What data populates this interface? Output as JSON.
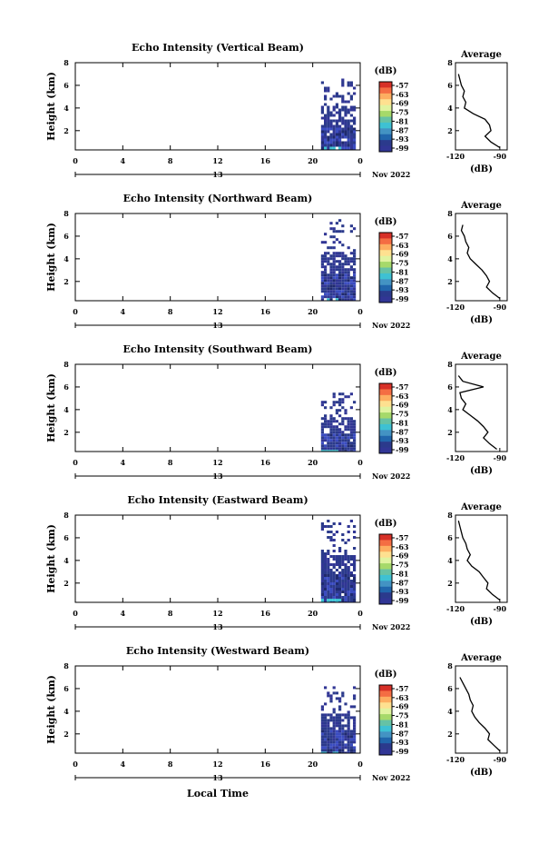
{
  "figure": {
    "x_axis_label": "Local Time",
    "date_label": "Nov 2022",
    "day_label": "13"
  },
  "colorbar": {
    "unit": "(dB)",
    "tick_labels": [
      "-57",
      "-63",
      "-69",
      "-75",
      "-81",
      "-87",
      "-93",
      "-99"
    ],
    "colors": [
      "#d73027",
      "#f46d43",
      "#fdae61",
      "#fee090",
      "#e0f3a0",
      "#a6d96a",
      "#66c2a5",
      "#3ec1d3",
      "#4393c3",
      "#2166ac",
      "#2b3a8c",
      "#313695"
    ]
  },
  "average_title": "Average",
  "average_unit": "(dB)",
  "chart_data": [
    {
      "type": "heatmap",
      "title": "Echo Intensity (Vertical Beam)",
      "ylabel": "Height (km)",
      "x_ticks": [
        "0",
        "4",
        "8",
        "12",
        "16",
        "20",
        "0"
      ],
      "y_ticks": [
        "2",
        "4",
        "6",
        "8"
      ],
      "xlim": [
        0,
        24
      ],
      "ylim": [
        0.3,
        8
      ],
      "data_start_hour": 20.7,
      "top_km": 6.6,
      "avg_x_ticks": [
        "-120",
        "-90"
      ],
      "avg_xlim": [
        -120,
        -85
      ],
      "avg_ylim": [
        0.3,
        8
      ],
      "avg_profile": {
        "height": [
          0.5,
          1.0,
          1.5,
          2.0,
          2.5,
          3.0,
          3.5,
          4.0,
          4.5,
          5.0,
          5.5,
          6.0,
          6.5,
          7.0
        ],
        "db": [
          -90,
          -96,
          -100,
          -96,
          -97,
          -100,
          -108,
          -114,
          -113,
          -115,
          -114,
          -116,
          -117,
          -118
        ]
      }
    },
    {
      "type": "heatmap",
      "title": "Echo Intensity (Northward Beam)",
      "ylabel": "Height (km)",
      "x_ticks": [
        "0",
        "4",
        "8",
        "12",
        "16",
        "20",
        "0"
      ],
      "y_ticks": [
        "2",
        "4",
        "6",
        "8"
      ],
      "xlim": [
        0,
        24
      ],
      "ylim": [
        0.3,
        8
      ],
      "data_start_hour": 20.7,
      "top_km": 7.5,
      "avg_x_ticks": [
        "-120",
        "-90"
      ],
      "avg_xlim": [
        -120,
        -85
      ],
      "avg_ylim": [
        0.3,
        8
      ],
      "avg_profile": {
        "height": [
          0.5,
          1.0,
          1.5,
          2.0,
          2.5,
          3.0,
          3.5,
          4.0,
          4.5,
          5.0,
          5.5,
          6.0,
          6.5,
          7.0
        ],
        "db": [
          -90,
          -95,
          -99,
          -97,
          -99,
          -102,
          -106,
          -110,
          -112,
          -111,
          -113,
          -114,
          -116,
          -115
        ]
      }
    },
    {
      "type": "heatmap",
      "title": "Echo Intensity (Southward Beam)",
      "ylabel": "Height (km)",
      "x_ticks": [
        "0",
        "4",
        "8",
        "12",
        "16",
        "20",
        "0"
      ],
      "y_ticks": [
        "2",
        "4",
        "6",
        "8"
      ],
      "xlim": [
        0,
        24
      ],
      "ylim": [
        0.3,
        8
      ],
      "data_start_hour": 20.7,
      "top_km": 5.5,
      "avg_x_ticks": [
        "-120",
        "-90"
      ],
      "avg_xlim": [
        -120,
        -85
      ],
      "avg_ylim": [
        0.3,
        8
      ],
      "avg_profile": {
        "height": [
          0.5,
          1.0,
          1.5,
          2.0,
          2.5,
          3.0,
          3.5,
          4.0,
          4.5,
          5.0,
          5.5,
          6.0,
          6.5,
          7.0
        ],
        "db": [
          -92,
          -97,
          -101,
          -98,
          -101,
          -105,
          -110,
          -115,
          -113,
          -116,
          -117,
          -101,
          -115,
          -118
        ]
      }
    },
    {
      "type": "heatmap",
      "title": "Echo Intensity (Eastward Beam)",
      "ylabel": "Height (km)",
      "x_ticks": [
        "0",
        "4",
        "8",
        "12",
        "16",
        "20",
        "0"
      ],
      "y_ticks": [
        "2",
        "4",
        "6",
        "8"
      ],
      "xlim": [
        0,
        24
      ],
      "ylim": [
        0.3,
        8
      ],
      "data_start_hour": 20.7,
      "top_km": 7.6,
      "avg_x_ticks": [
        "-120",
        "-90"
      ],
      "avg_xlim": [
        -120,
        -85
      ],
      "avg_ylim": [
        0.3,
        8
      ],
      "avg_profile": {
        "height": [
          0.5,
          1.0,
          1.5,
          2.0,
          2.5,
          3.0,
          3.5,
          4.0,
          4.5,
          5.0,
          5.5,
          6.0,
          6.5,
          7.0,
          7.5
        ],
        "db": [
          -90,
          -95,
          -99,
          -98,
          -101,
          -104,
          -109,
          -112,
          -110,
          -112,
          -113,
          -115,
          -116,
          -117,
          -118
        ]
      }
    },
    {
      "type": "heatmap",
      "title": "Echo Intensity (Westward Beam)",
      "ylabel": "Height (km)",
      "x_ticks": [
        "0",
        "4",
        "8",
        "12",
        "16",
        "20",
        "0"
      ],
      "y_ticks": [
        "2",
        "4",
        "6",
        "8"
      ],
      "xlim": [
        0,
        24
      ],
      "ylim": [
        0.3,
        8
      ],
      "data_start_hour": 20.7,
      "top_km": 6.2,
      "avg_x_ticks": [
        "-120",
        "-90"
      ],
      "avg_xlim": [
        -120,
        -85
      ],
      "avg_ylim": [
        0.3,
        8
      ],
      "avg_profile": {
        "height": [
          0.5,
          1.0,
          1.5,
          2.0,
          2.5,
          3.0,
          3.5,
          4.0,
          4.5,
          5.0,
          5.5,
          6.5,
          7.0
        ],
        "db": [
          -90,
          -94,
          -98,
          -97,
          -100,
          -104,
          -107,
          -109,
          -108,
          -110,
          -111,
          -115,
          -117
        ]
      }
    }
  ]
}
